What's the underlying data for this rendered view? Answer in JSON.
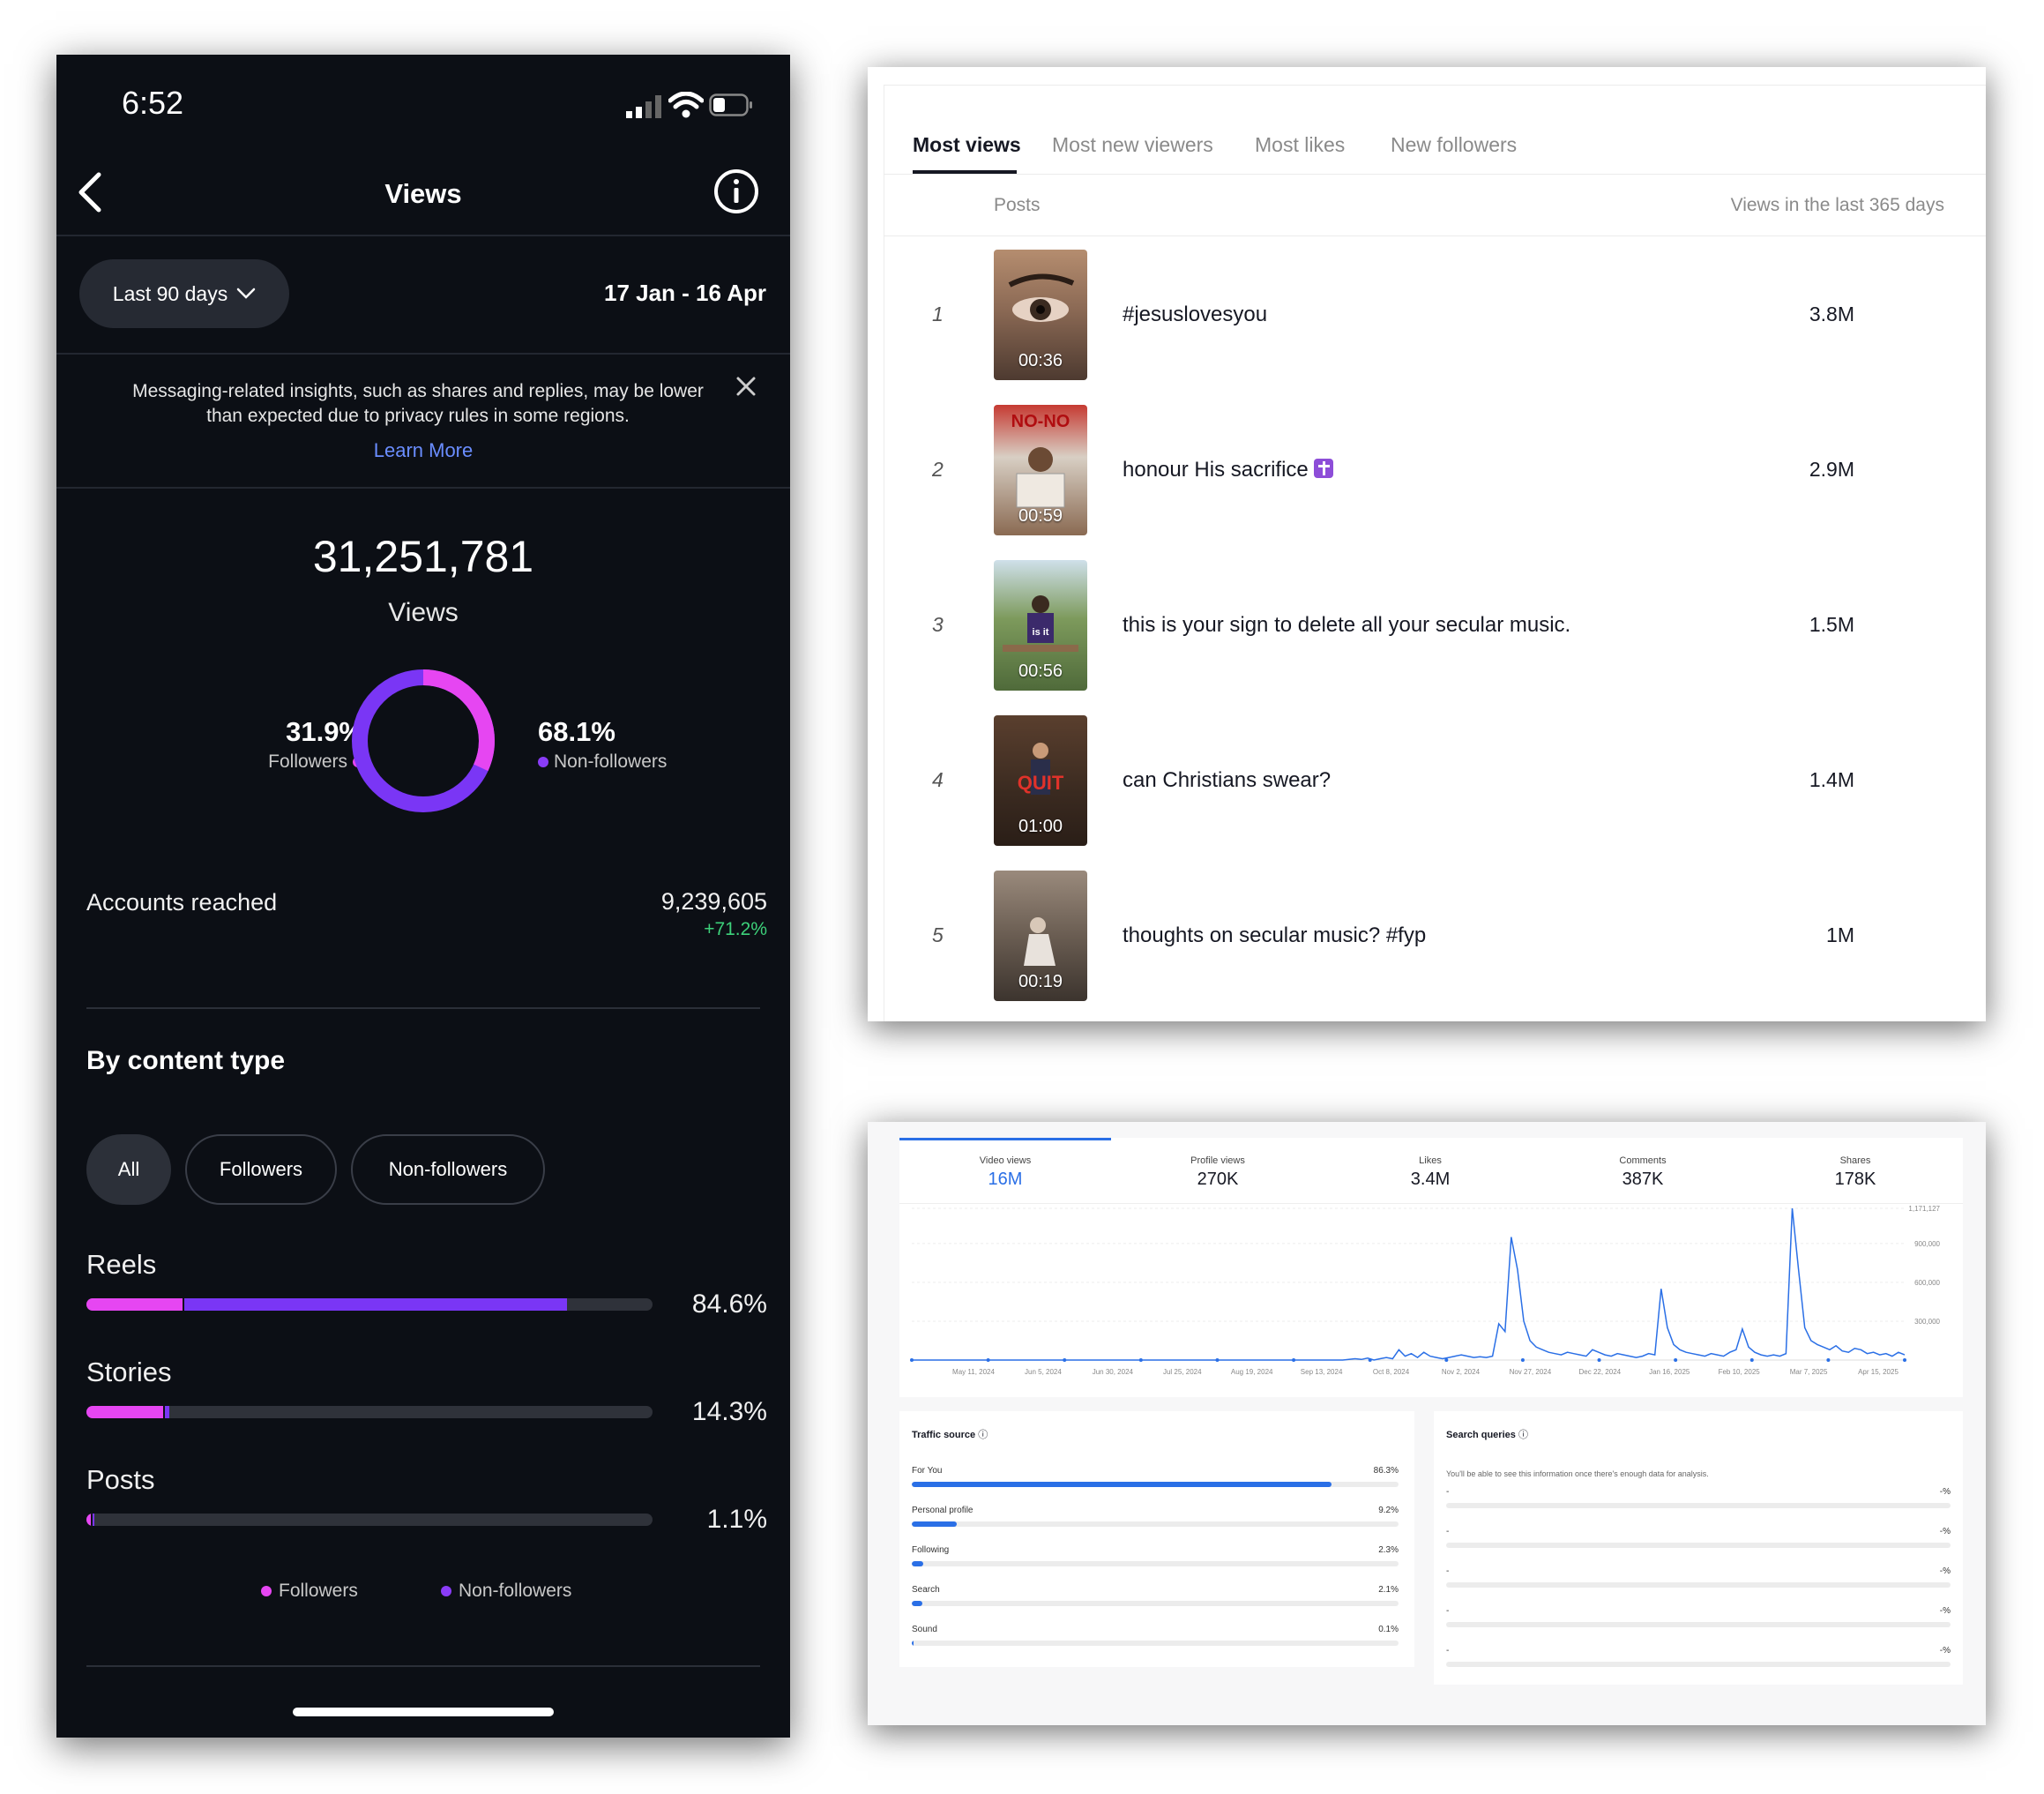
{
  "phone": {
    "status_time": "6:52",
    "nav_title": "Views",
    "range_pill": "Last 90 days",
    "date_range": "17 Jan - 16 Apr",
    "notice": "Messaging-related insights, such as shares and replies, may be lower than expected due to privacy rules in some regions.",
    "learn_more": "Learn More",
    "total_views": "31,251,781",
    "total_label": "Views",
    "followers_pct": "31.9%",
    "followers_label": "Followers",
    "nonfollowers_pct": "68.1%",
    "nonfollowers_label": "Non-followers",
    "donut_followers_fraction": 0.319,
    "accounts_reached_label": "Accounts reached",
    "accounts_reached_value": "9,239,605",
    "accounts_reached_delta": "+71.2%",
    "section_title": "By content type",
    "chips": [
      "All",
      "Followers",
      "Non-followers"
    ],
    "content_types": [
      {
        "label": "Reels",
        "pct": "84.6%",
        "followers_fraction": 0.17,
        "nonfollowers_fraction": 0.676
      },
      {
        "label": "Stories",
        "pct": "14.3%",
        "followers_fraction": 0.136,
        "nonfollowers_fraction": 0.007
      },
      {
        "label": "Posts",
        "pct": "1.1%",
        "followers_fraction": 0.008,
        "nonfollowers_fraction": 0.003
      }
    ],
    "legend": [
      "Followers",
      "Non-followers"
    ],
    "colors": {
      "followers": "#e646f2",
      "nonfollowers": "#7a36f5",
      "positive": "#3dd17a",
      "link": "#6a8dff"
    }
  },
  "top_posts": {
    "tabs": [
      "Most views",
      "Most new viewers",
      "Most likes",
      "New followers"
    ],
    "col_posts": "Posts",
    "col_views": "Views in the last 365 days",
    "rows": [
      {
        "rank": "1",
        "duration": "00:36",
        "title": "#jesuslovesyou",
        "views": "3.8M"
      },
      {
        "rank": "2",
        "duration": "00:59",
        "title": "honour His sacrifice",
        "views": "2.9M"
      },
      {
        "rank": "3",
        "duration": "00:56",
        "title": "this is your sign to delete all your secular music.",
        "views": "1.5M"
      },
      {
        "rank": "4",
        "duration": "01:00",
        "title": "can Christians swear?",
        "views": "1.4M"
      },
      {
        "rank": "5",
        "duration": "00:19",
        "title": "thoughts on secular music? #fyp",
        "views": "1M"
      }
    ],
    "thumb_texts": {
      "t2": "NO-NO",
      "t3": "is it",
      "t4": "QUIT"
    }
  },
  "analytics": {
    "metrics": [
      {
        "label": "Video views",
        "value": "16M"
      },
      {
        "label": "Profile views",
        "value": "270K"
      },
      {
        "label": "Likes",
        "value": "3.4M"
      },
      {
        "label": "Comments",
        "value": "387K"
      },
      {
        "label": "Shares",
        "value": "178K"
      }
    ],
    "chart_data": {
      "type": "line",
      "x_labels": [
        "May 11, 2024",
        "Jun 5, 2024",
        "Jun 30, 2024",
        "Jul 25, 2024",
        "Aug 19, 2024",
        "Sep 13, 2024",
        "Oct 8, 2024",
        "Nov 2, 2024",
        "Nov 27, 2024",
        "Dec 22, 2024",
        "Jan 16, 2025",
        "Feb 10, 2025",
        "Mar 7, 2025",
        "Apr 15, 2025"
      ],
      "y_tick_labels": [
        "1,171,127",
        "900,000",
        "600,000",
        "300,000"
      ],
      "y_ticks": [
        1171127,
        900000,
        600000,
        300000
      ],
      "ylim": [
        0,
        1171127
      ],
      "grid": true,
      "series": [
        {
          "values": [
            0,
            0,
            0,
            0,
            0,
            0,
            0,
            0,
            0,
            0,
            0,
            0,
            0,
            0,
            0,
            0,
            0,
            0,
            0,
            0,
            0,
            0,
            0,
            0,
            0,
            0,
            0,
            0,
            0,
            0,
            0,
            0,
            0,
            0,
            0,
            0,
            0,
            0,
            0,
            0,
            0,
            0,
            0,
            0,
            0,
            0,
            0,
            0,
            0,
            0,
            0,
            0,
            0,
            0,
            0,
            0,
            0,
            0,
            0,
            0,
            0,
            0,
            0,
            0,
            0,
            0,
            0,
            0,
            0,
            0,
            5000,
            10000,
            5000,
            15000,
            0,
            10000,
            20000,
            10000,
            80000,
            30000,
            50000,
            20000,
            60000,
            30000,
            20000,
            10000,
            20000,
            30000,
            40000,
            30000,
            20000,
            25000,
            20000,
            30000,
            280000,
            220000,
            950000,
            700000,
            300000,
            150000,
            100000,
            80000,
            60000,
            50000,
            40000,
            60000,
            50000,
            40000,
            30000,
            80000,
            60000,
            40000,
            30000,
            50000,
            40000,
            30000,
            20000,
            30000,
            50000,
            40000,
            550000,
            250000,
            120000,
            80000,
            60000,
            50000,
            40000,
            30000,
            50000,
            40000,
            30000,
            60000,
            80000,
            240000,
            100000,
            60000,
            40000,
            30000,
            40000,
            30000,
            50000,
            1171127,
            700000,
            250000,
            150000,
            120000,
            100000,
            80000,
            110000,
            70000,
            60000,
            90000,
            80000,
            50000,
            60000,
            40000,
            50000,
            30000,
            60000,
            40000
          ]
        }
      ]
    },
    "traffic_title": "Traffic source",
    "traffic_rows": [
      {
        "label": "For You",
        "pct": "86.3%",
        "fraction": 0.863
      },
      {
        "label": "Personal profile",
        "pct": "9.2%",
        "fraction": 0.092
      },
      {
        "label": "Following",
        "pct": "2.3%",
        "fraction": 0.023
      },
      {
        "label": "Search",
        "pct": "2.1%",
        "fraction": 0.021
      },
      {
        "label": "Sound",
        "pct": "0.1%",
        "fraction": 0.001
      }
    ],
    "search_title": "Search queries",
    "search_note": "You'll be able to see this information once there's enough data for analysis.",
    "search_rows": [
      {
        "label": "-",
        "pct": "-%"
      },
      {
        "label": "-",
        "pct": "-%"
      },
      {
        "label": "-",
        "pct": "-%"
      },
      {
        "label": "-",
        "pct": "-%"
      },
      {
        "label": "-",
        "pct": "-%"
      }
    ]
  }
}
